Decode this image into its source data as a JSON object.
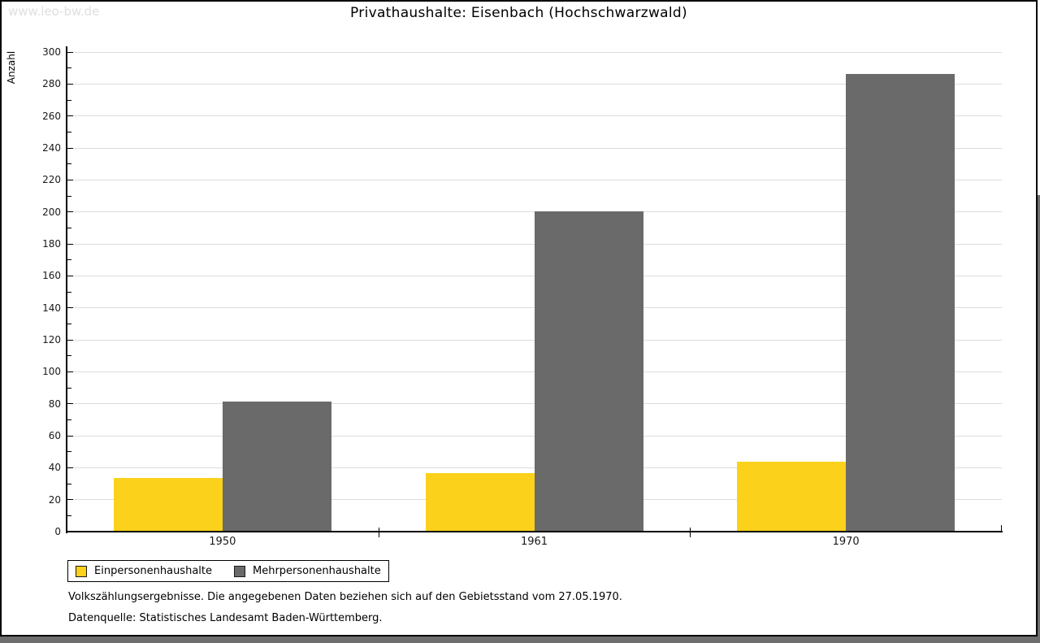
{
  "watermark": "www.leo-bw.de",
  "chart_data": {
    "type": "bar",
    "title": "Privathaushalte: Eisenbach (Hochschwarzwald)",
    "xlabel": "",
    "ylabel": "Anzahl",
    "categories": [
      "1950",
      "1961",
      "1970"
    ],
    "series": [
      {
        "name": "Einpersonenhaushalte",
        "color": "#fcd11c",
        "values": [
          33,
          36,
          43
        ]
      },
      {
        "name": "Mehrpersonenhaushalte",
        "color": "#6a6a6a",
        "values": [
          81,
          200,
          286
        ]
      }
    ],
    "ylim": [
      0,
      300
    ],
    "ytick_step": 20,
    "yminor_step": 10,
    "grid": true,
    "legend_position": "bottom-left"
  },
  "footnotes": [
    "Volkszählungsergebnisse. Die angegebenen Daten beziehen sich auf den Gebietsstand vom 27.05.1970.",
    "Datenquelle: Statistisches Landesamt Baden-Württemberg."
  ]
}
